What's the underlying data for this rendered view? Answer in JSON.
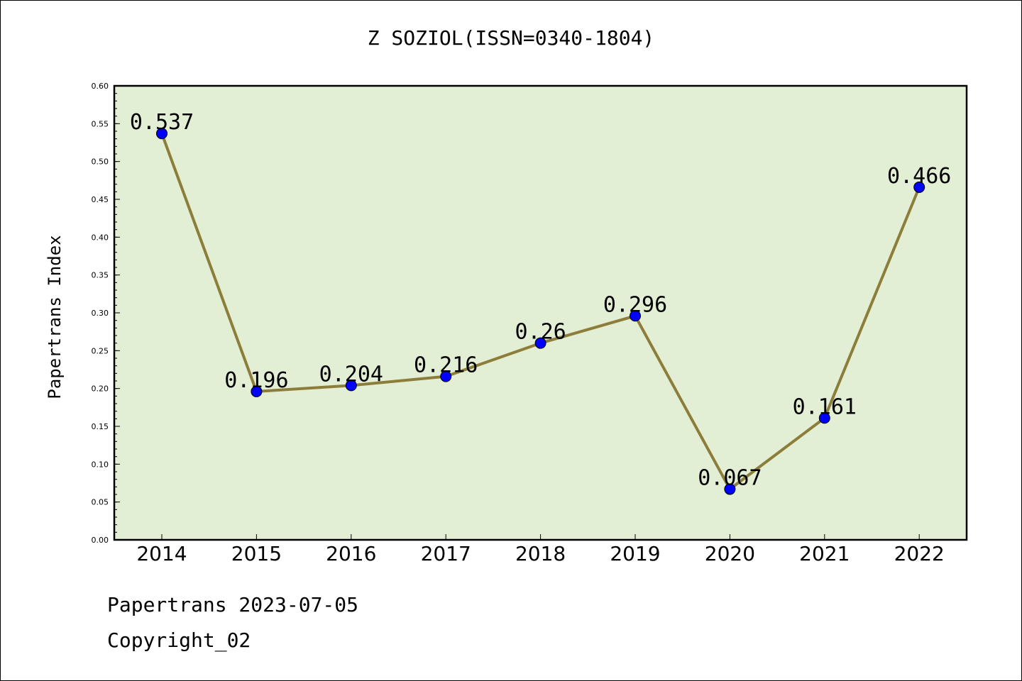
{
  "chart_data": {
    "type": "line",
    "title": "Z SOZIOL(ISSN=0340-1804)",
    "ylabel": "Papertrans Index",
    "xlabel": "",
    "categories": [
      "2014",
      "2015",
      "2016",
      "2017",
      "2018",
      "2019",
      "2020",
      "2021",
      "2022"
    ],
    "values": [
      0.537,
      0.196,
      0.204,
      0.216,
      0.26,
      0.296,
      0.067,
      0.161,
      0.466
    ],
    "data_labels": [
      "0.537",
      "0.196",
      "0.204",
      "0.216",
      "0.26",
      "0.296",
      "0.067",
      "0.161",
      "0.466"
    ],
    "ylim": [
      0,
      0.6
    ],
    "yticks": [
      "0.00",
      "0.05",
      "0.10",
      "0.15",
      "0.20",
      "0.25",
      "0.30",
      "0.35",
      "0.40",
      "0.45",
      "0.50",
      "0.55",
      "0.60"
    ],
    "grid": false,
    "colors": {
      "plot_background": "#e2efd5",
      "line": "#8c7d3a",
      "marker": "#0000ff"
    }
  },
  "footer": {
    "date_text": "Papertrans 2023-07-05",
    "copyright_text": "Copyright_02"
  }
}
